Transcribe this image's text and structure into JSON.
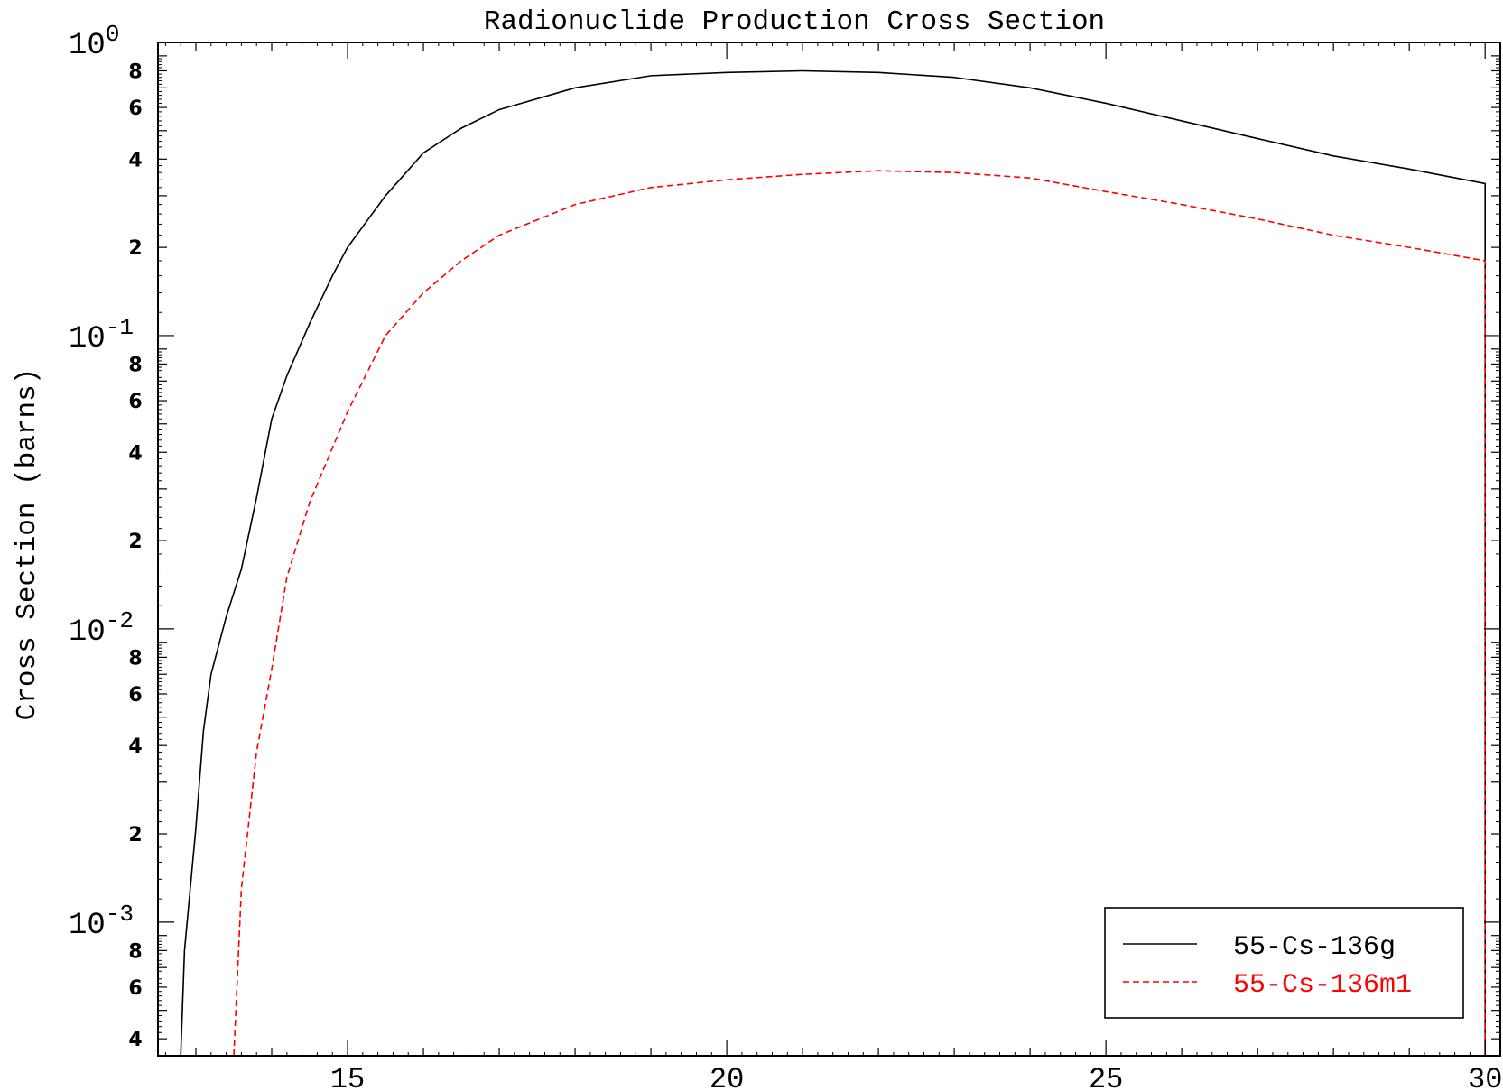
{
  "chart_data": {
    "type": "line",
    "title": "Radionuclide Production Cross Section",
    "xlabel": "",
    "ylabel": "Cross Section (barns)",
    "xlim": [
      12.5,
      30.2
    ],
    "ylim": [
      0.00035,
      1.0
    ],
    "y_scale": "log",
    "grid": false,
    "legend_position": "bottom-right",
    "x_ticks": [
      15,
      20,
      25,
      30
    ],
    "x_tick_labels": [
      "15",
      "20",
      "25",
      "30"
    ],
    "y_decades": [
      {
        "value": 1.0,
        "base": "10",
        "exp": "0"
      },
      {
        "value": 0.1,
        "base": "10",
        "exp": "-1"
      },
      {
        "value": 0.01,
        "base": "10",
        "exp": "-2"
      },
      {
        "value": 0.001,
        "base": "10",
        "exp": "-3"
      }
    ],
    "y_minor_labels": [
      {
        "value": 0.8,
        "label": "8"
      },
      {
        "value": 0.6,
        "label": "6"
      },
      {
        "value": 0.4,
        "label": "4"
      },
      {
        "value": 0.2,
        "label": "2"
      },
      {
        "value": 0.08,
        "label": "8"
      },
      {
        "value": 0.06,
        "label": "6"
      },
      {
        "value": 0.04,
        "label": "4"
      },
      {
        "value": 0.02,
        "label": "2"
      },
      {
        "value": 0.008,
        "label": "8"
      },
      {
        "value": 0.006,
        "label": "6"
      },
      {
        "value": 0.004,
        "label": "4"
      },
      {
        "value": 0.002,
        "label": "2"
      },
      {
        "value": 0.0008,
        "label": "8"
      },
      {
        "value": 0.0006,
        "label": "6"
      },
      {
        "value": 0.0004,
        "label": "4"
      }
    ],
    "series": [
      {
        "name": "55-Cs-136g",
        "color": "#000000",
        "dash": "solid",
        "points": [
          [
            12.8,
            0.00035
          ],
          [
            12.85,
            0.0008
          ],
          [
            13.0,
            0.0021
          ],
          [
            13.1,
            0.0045
          ],
          [
            13.2,
            0.007
          ],
          [
            13.4,
            0.011
          ],
          [
            13.6,
            0.016
          ],
          [
            13.8,
            0.028
          ],
          [
            14.0,
            0.052
          ],
          [
            14.2,
            0.073
          ],
          [
            14.5,
            0.11
          ],
          [
            14.8,
            0.16
          ],
          [
            15.0,
            0.2
          ],
          [
            15.5,
            0.3
          ],
          [
            16.0,
            0.42
          ],
          [
            16.5,
            0.51
          ],
          [
            17.0,
            0.59
          ],
          [
            18.0,
            0.7
          ],
          [
            19.0,
            0.77
          ],
          [
            20.0,
            0.79
          ],
          [
            21.0,
            0.8
          ],
          [
            22.0,
            0.79
          ],
          [
            23.0,
            0.76
          ],
          [
            24.0,
            0.7
          ],
          [
            25.0,
            0.62
          ],
          [
            26.0,
            0.54
          ],
          [
            27.0,
            0.47
          ],
          [
            28.0,
            0.41
          ],
          [
            29.0,
            0.37
          ],
          [
            30.0,
            0.33
          ],
          [
            30.0,
            0.00035
          ]
        ]
      },
      {
        "name": "55-Cs-136m1",
        "color": "#ff0000",
        "dash": "dashed",
        "points": [
          [
            13.5,
            0.00035
          ],
          [
            13.6,
            0.0013
          ],
          [
            13.8,
            0.0038
          ],
          [
            14.0,
            0.0073
          ],
          [
            14.2,
            0.015
          ],
          [
            14.5,
            0.027
          ],
          [
            15.0,
            0.055
          ],
          [
            15.5,
            0.1
          ],
          [
            16.0,
            0.14
          ],
          [
            16.5,
            0.18
          ],
          [
            17.0,
            0.22
          ],
          [
            18.0,
            0.28
          ],
          [
            19.0,
            0.32
          ],
          [
            20.0,
            0.34
          ],
          [
            21.0,
            0.355
          ],
          [
            22.0,
            0.365
          ],
          [
            23.0,
            0.36
          ],
          [
            24.0,
            0.345
          ],
          [
            25.0,
            0.31
          ],
          [
            26.0,
            0.28
          ],
          [
            27.0,
            0.25
          ],
          [
            28.0,
            0.22
          ],
          [
            29.0,
            0.2
          ],
          [
            30.0,
            0.18
          ],
          [
            30.0,
            0.00035
          ]
        ]
      }
    ]
  }
}
